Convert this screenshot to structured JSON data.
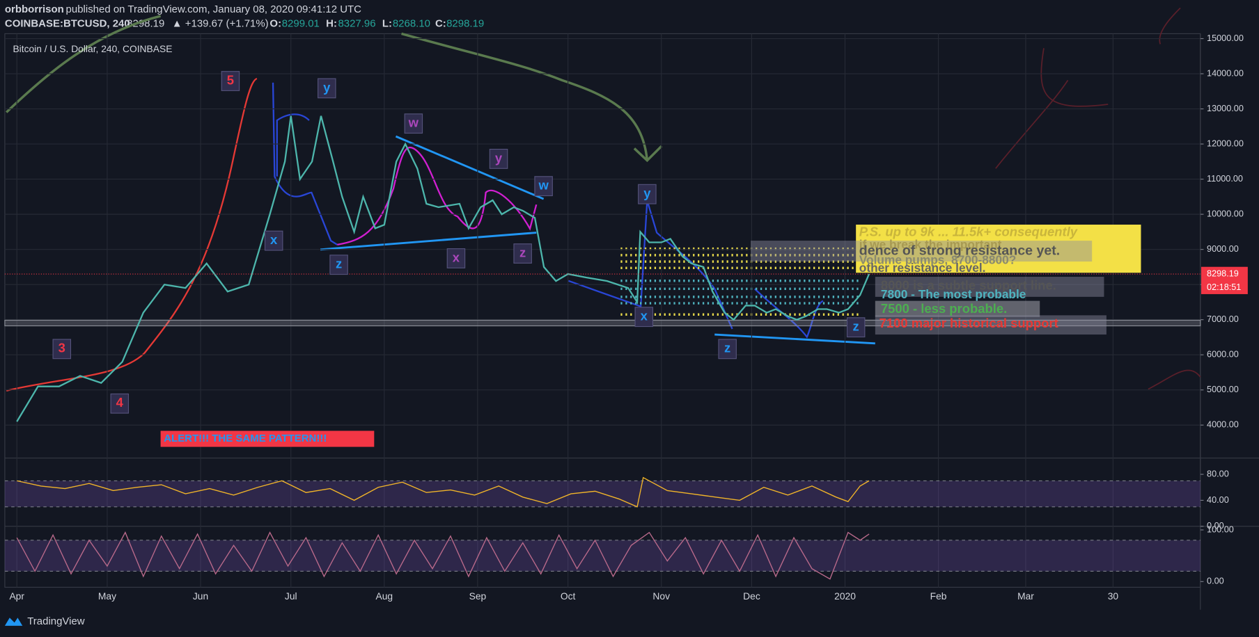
{
  "header": {
    "author": "orbborrison",
    "published": "published on TradingView.com, January 08, 2020 09:41:12 UTC",
    "symbol": "COINBASE:BTCUSD, 240",
    "price": "8298.19",
    "change": "▲ +139.67 (+1.71%)",
    "o_label": "O:",
    "o": "8299.01",
    "h_label": "H:",
    "h": "8327.96",
    "l_label": "L:",
    "l": "8268.10",
    "c_label": "C:",
    "c": "8298.19"
  },
  "footer": {
    "brand": "TradingView"
  },
  "chart_data": [
    {
      "type": "line",
      "title": "Bitcoin / U.S. Dollar, 240, COINBASE",
      "color": "#4db6ac",
      "x": [
        0,
        7,
        14,
        21,
        28,
        35,
        42,
        49,
        56,
        63,
        70,
        77,
        84,
        89,
        91,
        94,
        98,
        101,
        105,
        108,
        112,
        115,
        119,
        122,
        126,
        129,
        133,
        136,
        140,
        147,
        150,
        154,
        158,
        161,
        165,
        168,
        172,
        175,
        179,
        183,
        189,
        196,
        203,
        206,
        207,
        210,
        214,
        217,
        221,
        224,
        228,
        231,
        235,
        238,
        242,
        245,
        249,
        252,
        256,
        259,
        262,
        266,
        269,
        273,
        276,
        280,
        283
      ],
      "values": [
        4100,
        5100,
        5100,
        5400,
        5200,
        5800,
        7200,
        8000,
        7900,
        8600,
        7800,
        8000,
        10000,
        11500,
        12800,
        11000,
        11500,
        12800,
        11500,
        10500,
        9500,
        10500,
        9600,
        9700,
        11500,
        12000,
        11300,
        10300,
        10200,
        10300,
        9600,
        10200,
        10400,
        10000,
        10200,
        10100,
        9900,
        8500,
        8100,
        8300,
        8200,
        8100,
        7900,
        7500,
        9500,
        9200,
        9200,
        9300,
        8800,
        8600,
        8500,
        7800,
        7200,
        7000,
        7400,
        7400,
        7200,
        7300,
        7100,
        7000,
        7100,
        7300,
        7300,
        7200,
        7300,
        7700,
        8300
      ],
      "xlim": [
        -4,
        393
      ],
      "xticks": [
        {
          "value": 0,
          "label": "Apr"
        },
        {
          "value": 30,
          "label": "May"
        },
        {
          "value": 61,
          "label": "Jun"
        },
        {
          "value": 91,
          "label": "Jul"
        },
        {
          "value": 122,
          "label": "Aug"
        },
        {
          "value": 153,
          "label": "Sep"
        },
        {
          "value": 183,
          "label": "Oct"
        },
        {
          "value": 214,
          "label": "Nov"
        },
        {
          "value": 244,
          "label": "Dec"
        },
        {
          "value": 275,
          "label": "2020"
        },
        {
          "value": 306,
          "label": "Feb"
        },
        {
          "value": 335,
          "label": "Mar"
        },
        {
          "value": 364,
          "label": "30"
        }
      ],
      "ylim": [
        3060,
        15140
      ],
      "yticks": [
        {
          "value": 4000,
          "label": "4000.00"
        },
        {
          "value": 5000,
          "label": "5000.00"
        },
        {
          "value": 6000,
          "label": "6000.00"
        },
        {
          "value": 7000,
          "label": "7000.00"
        },
        {
          "value": 8000,
          "label": "8000.00"
        },
        {
          "value": 9000,
          "label": "9000.00"
        },
        {
          "value": 10000,
          "label": "10000.00"
        },
        {
          "value": 11000,
          "label": "11000.00"
        },
        {
          "value": 12000,
          "label": "12000.00"
        },
        {
          "value": 13000,
          "label": "13000.00"
        },
        {
          "value": 14000,
          "label": "14000.00"
        },
        {
          "value": 15000,
          "label": "15000.00"
        }
      ],
      "last_price": {
        "value": 8298.19,
        "label": "8298.19",
        "countdown": "02:18:51"
      },
      "support_line": 6870,
      "grid": true,
      "annotations": [
        "5",
        "y",
        "w",
        "y",
        "w",
        "x",
        "z",
        "x",
        "z",
        "y",
        "x",
        "z",
        "3",
        "4",
        "z"
      ],
      "alert": "ALERT!!! THE SAME PATTERN!!!",
      "notes": [
        "P.S. up to 9k ... 11.5k+ consequently",
        "if we break the important",
        "dence of strong resistance yet.",
        "Volume pumps, 8700-8800?",
        "other resistance level.",
        "8000 is a subtle support line.",
        "7800 - The most probable",
        "7500 - less probable.",
        "7100 major historical support"
      ]
    },
    {
      "type": "line",
      "color": "#f0b429",
      "x": [
        0,
        8,
        16,
        24,
        32,
        40,
        48,
        56,
        64,
        72,
        80,
        88,
        96,
        104,
        112,
        120,
        128,
        136,
        144,
        152,
        160,
        168,
        176,
        184,
        192,
        200,
        206,
        208,
        216,
        224,
        232,
        240,
        248,
        256,
        264,
        272,
        276,
        280,
        283
      ],
      "values": [
        70,
        62,
        58,
        66,
        55,
        60,
        64,
        50,
        58,
        48,
        60,
        70,
        52,
        58,
        40,
        60,
        68,
        52,
        56,
        48,
        62,
        45,
        35,
        50,
        54,
        42,
        30,
        75,
        55,
        50,
        45,
        40,
        60,
        48,
        62,
        45,
        38,
        62,
        70
      ],
      "xlim": [
        -4,
        393
      ],
      "ylim": [
        0,
        105
      ],
      "yticks": [
        {
          "value": 80,
          "label": "80.00"
        },
        {
          "value": 40,
          "label": "40.00"
        },
        {
          "value": 0,
          "label": "0.00"
        }
      ],
      "band": [
        30,
        70
      ]
    },
    {
      "type": "line",
      "color": "#b8698a",
      "x": [
        0,
        6,
        12,
        18,
        24,
        30,
        36,
        42,
        48,
        54,
        60,
        66,
        72,
        78,
        84,
        90,
        96,
        102,
        108,
        114,
        120,
        126,
        132,
        138,
        144,
        150,
        156,
        162,
        168,
        174,
        180,
        186,
        192,
        198,
        204,
        210,
        216,
        222,
        228,
        234,
        240,
        246,
        252,
        258,
        264,
        270,
        276,
        280,
        283
      ],
      "values": [
        85,
        20,
        90,
        15,
        80,
        30,
        95,
        10,
        88,
        25,
        92,
        15,
        70,
        20,
        95,
        30,
        85,
        10,
        75,
        20,
        90,
        15,
        80,
        25,
        88,
        10,
        85,
        20,
        75,
        15,
        90,
        25,
        80,
        10,
        70,
        95,
        40,
        85,
        15,
        80,
        20,
        90,
        10,
        85,
        25,
        5,
        95,
        80,
        92
      ],
      "xlim": [
        -4,
        393
      ],
      "ylim": [
        -11,
        107
      ],
      "yticks": [
        {
          "value": 100,
          "label": "100.00"
        },
        {
          "value": 0,
          "label": "0.00"
        }
      ],
      "band": [
        20,
        80
      ]
    }
  ]
}
